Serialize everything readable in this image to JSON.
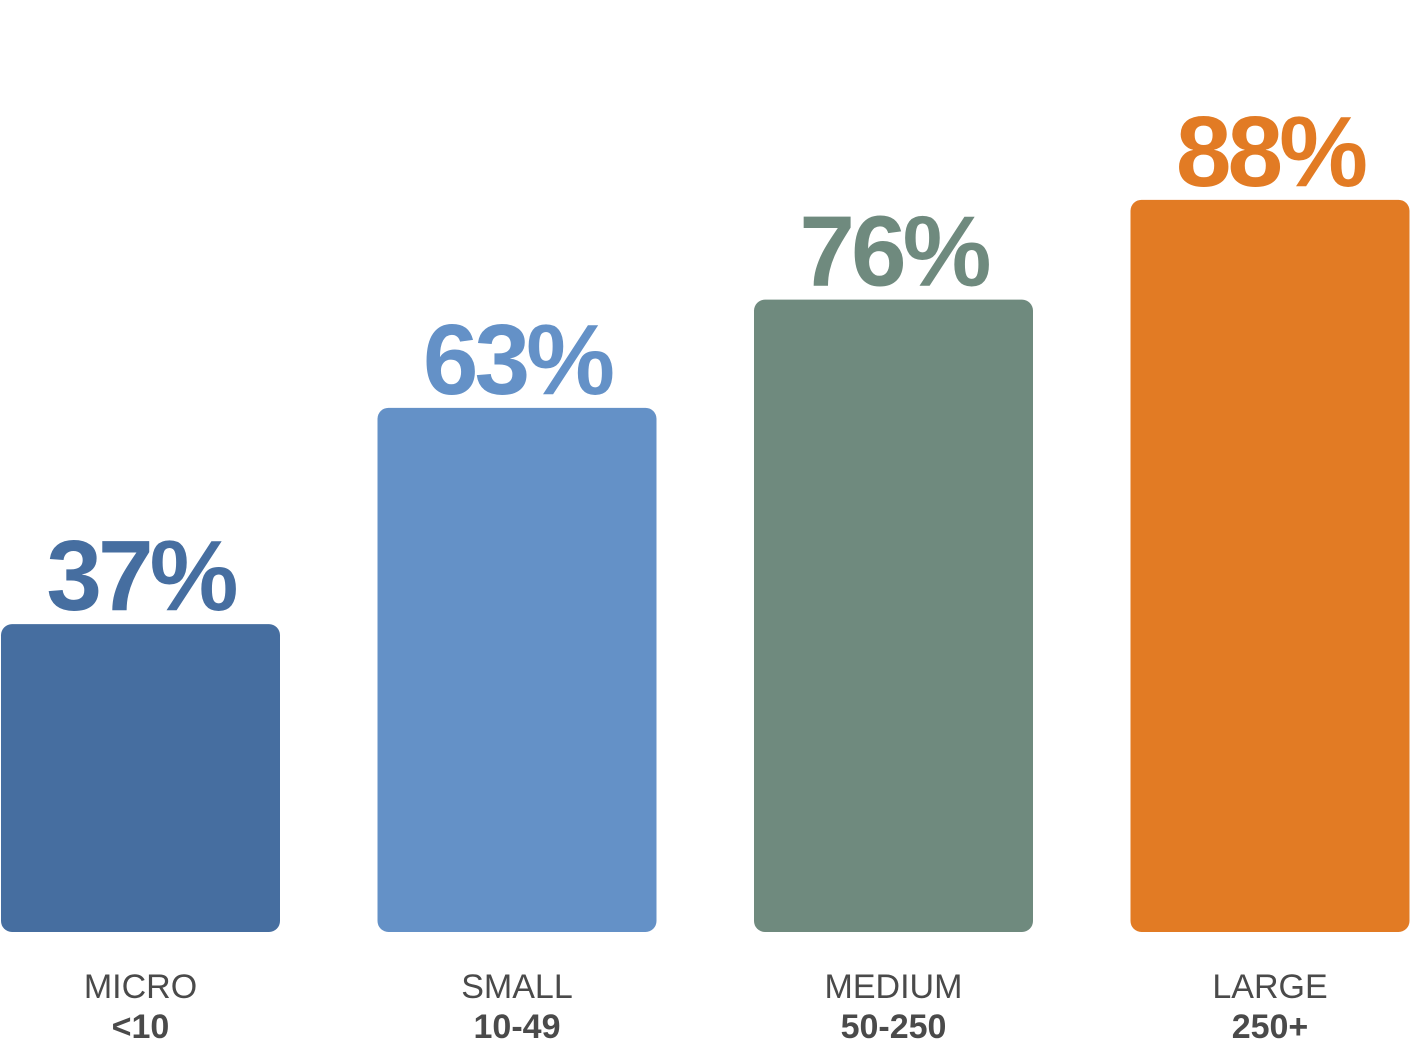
{
  "chart_data": {
    "type": "bar",
    "title": "",
    "xlabel": "",
    "ylabel": "",
    "ylim": [
      0,
      100
    ],
    "grid": false,
    "categories": [
      {
        "name": "MICRO",
        "range": "<10"
      },
      {
        "name": "SMALL",
        "range": "10-49"
      },
      {
        "name": "MEDIUM",
        "range": "50-250"
      },
      {
        "name": "LARGE",
        "range": "250+"
      }
    ],
    "values": [
      37,
      63,
      76,
      88
    ],
    "value_labels": [
      "37%",
      "63%",
      "76%",
      "88%"
    ],
    "colors": [
      "#466ea0",
      "#6491c7",
      "#6f8a7e",
      "#e27b24"
    ]
  }
}
